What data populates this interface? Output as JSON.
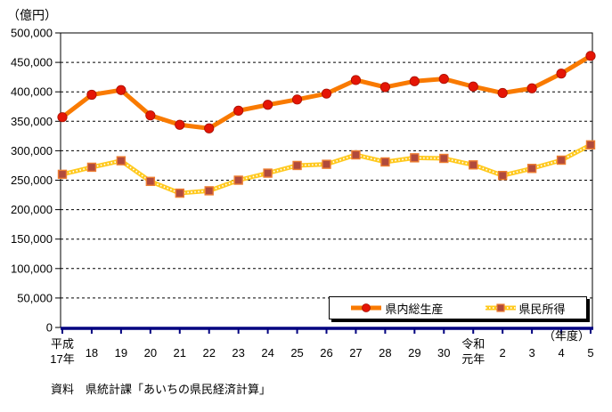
{
  "header": {
    "unit_label": "（億円）"
  },
  "footer": {
    "source_note": "資料　県統計課「あいちの県民経済計算」"
  },
  "colors": {
    "gdp_line": "#F97A00",
    "gdp_marker": "#E51505",
    "gdp_marker_border": "#A81000",
    "income_line": "#FFC91E",
    "income_dot_overlay": "#FFFFFF",
    "income_marker": "#B04A3C",
    "income_marker_border": "#ED7D31",
    "x_axis": "#000080",
    "grid": "#000000",
    "text": "#000000"
  },
  "chart_data": {
    "type": "line",
    "title": "",
    "xlabel": "（年度）",
    "ylabel": "（億円）",
    "categories": [
      "平成\n17年",
      "18",
      "19",
      "20",
      "21",
      "22",
      "23",
      "24",
      "25",
      "26",
      "27",
      "28",
      "29",
      "30",
      "令和\n元年",
      "2",
      "3",
      "4",
      "5"
    ],
    "series": [
      {
        "name": "県内総生産",
        "values": [
          357000,
          395000,
          403000,
          360000,
          344000,
          338000,
          368000,
          378000,
          387000,
          397000,
          420000,
          408000,
          418000,
          422000,
          409000,
          398000,
          406000,
          431000,
          461000
        ]
      },
      {
        "name": "県民所得",
        "values": [
          260000,
          272000,
          283000,
          248000,
          228000,
          232000,
          250000,
          262000,
          275000,
          277000,
          293000,
          281000,
          288000,
          287000,
          276000,
          258000,
          270000,
          284000,
          310000
        ]
      }
    ],
    "ylim": [
      0,
      500000
    ],
    "ytick_interval": 50000,
    "grid": true,
    "grid_style": "dashed",
    "legend_position": "bottom-right-inside"
  }
}
